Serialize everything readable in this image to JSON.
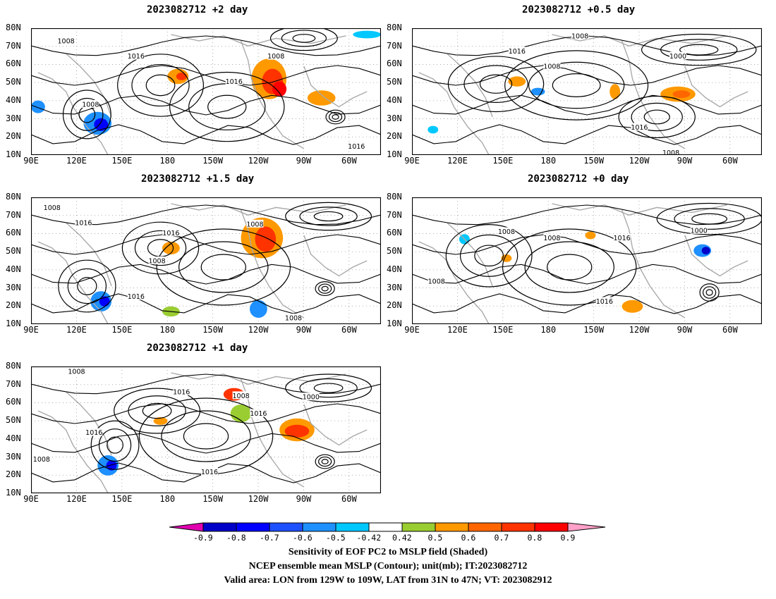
{
  "panels": [
    {
      "title": "2023082712 +2 day",
      "id": "p2"
    },
    {
      "title": "2023082712 +0.5 day",
      "id": "p05"
    },
    {
      "title": "2023082712 +1.5 day",
      "id": "p15"
    },
    {
      "title": "2023082712 +0 day",
      "id": "p0"
    },
    {
      "title": "2023082712 +1 day",
      "id": "p1"
    }
  ],
  "lat_labels": [
    "80N",
    "70N",
    "60N",
    "50N",
    "40N",
    "30N",
    "20N",
    "10N"
  ],
  "lon_labels": [
    "90E",
    "120E",
    "150E",
    "180",
    "150W",
    "120W",
    "90W",
    "60W"
  ],
  "contour_labels": [
    "1008",
    "1016",
    "1000"
  ],
  "colorbar": {
    "ticks": [
      "-0.9",
      "-0.8",
      "-0.7",
      "-0.6",
      "-0.5",
      "-0.42",
      "0.42",
      "0.5",
      "0.6",
      "0.7",
      "0.8",
      "0.9"
    ],
    "colors": [
      "#e000b0",
      "#0000c8",
      "#0000ff",
      "#1e50ff",
      "#1e90ff",
      "#00c8ff",
      "#ffffff",
      "#9acd32",
      "#ff9900",
      "#ff6600",
      "#ff3300",
      "#ff0000",
      "#ffa0c8"
    ]
  },
  "captions": [
    "Sensitivity of EOF PC2 to MSLP field (Shaded)",
    "NCEP ensemble mean MSLP (Contour); unit(mb); IT:2023082712",
    "Valid area: LON from 129W to 109W, LAT from 31N to 47N; VT: 2023082912"
  ]
}
